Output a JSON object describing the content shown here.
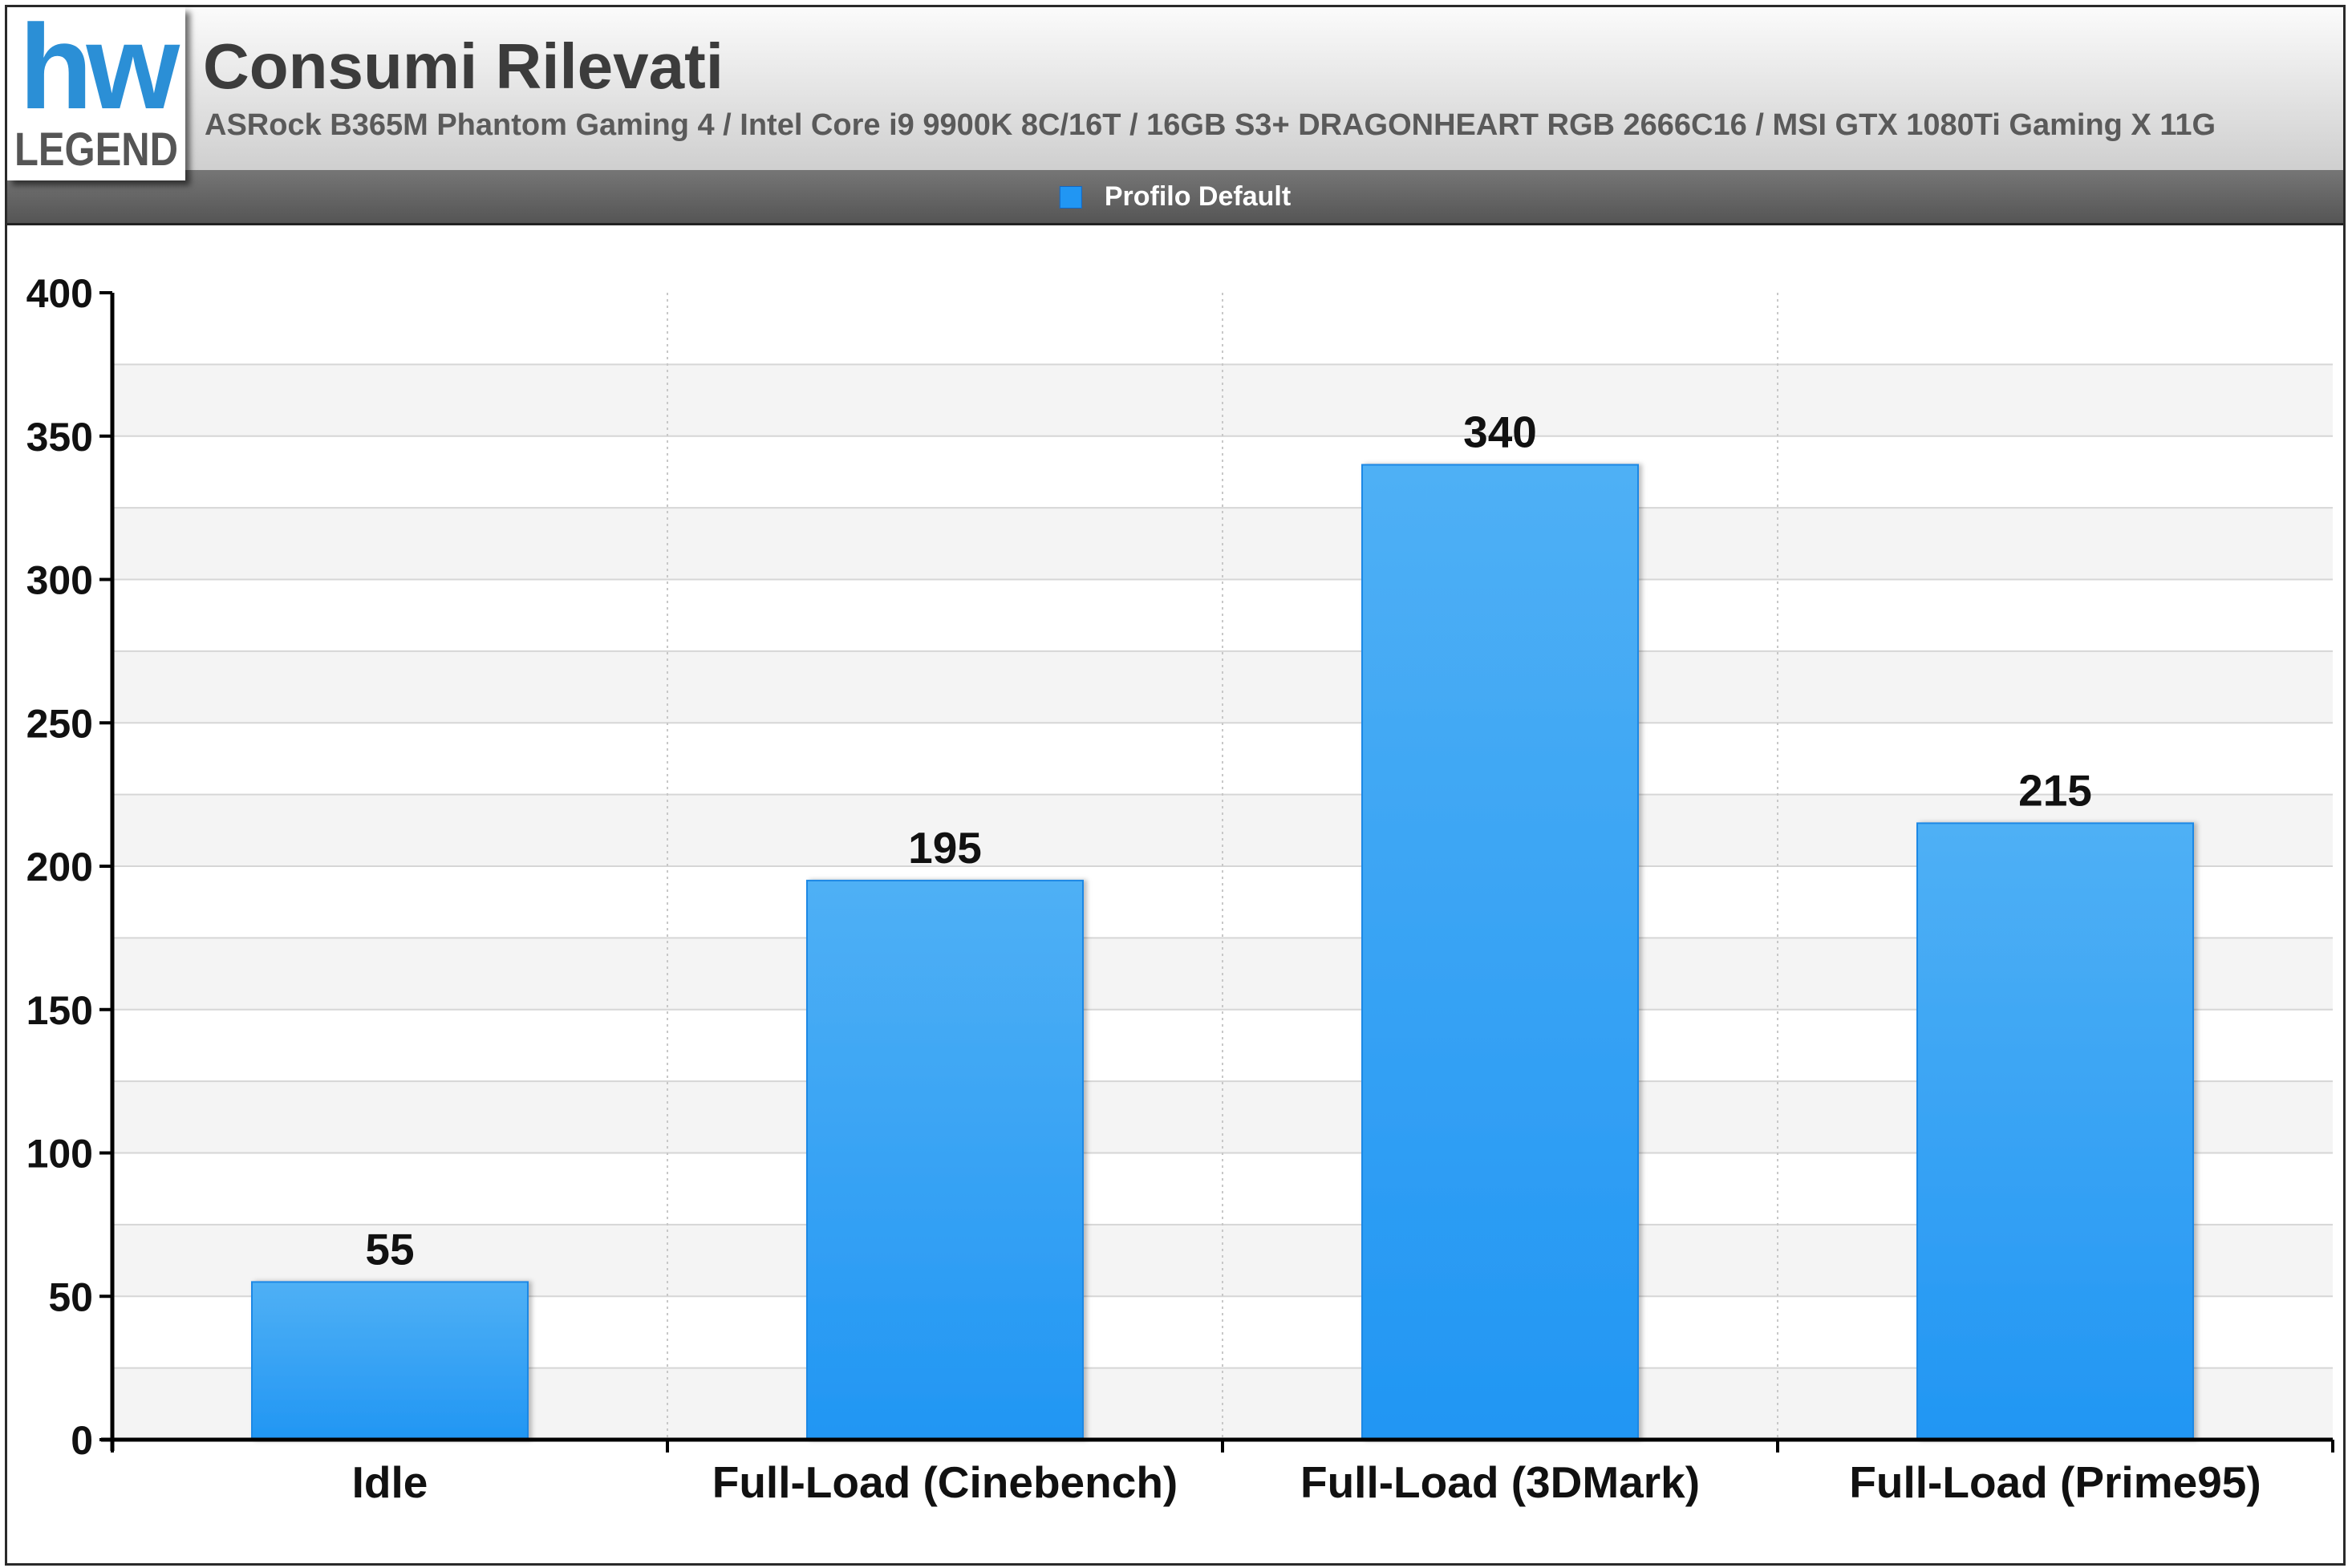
{
  "header": {
    "logo_top": "hw",
    "logo_bottom": "LEGEND",
    "title": "Consumi Rilevati",
    "subtitle": "ASRock B365M Phantom Gaming 4 / Intel Core i9 9900K 8C/16T / 16GB S3+ DRAGONHEART RGB 2666C16 / MSI GTX 1080Ti Gaming X 11G"
  },
  "colors": {
    "bar": "#2196f3",
    "bar_light": "#4fb0f5",
    "bar_border": "#1e88e5",
    "band": "#f4f4f4",
    "grid": "#d6d6d6",
    "logo_blue": "#2b8fd6",
    "logo_gray": "#555555"
  },
  "chart_data": {
    "type": "bar",
    "title": "Consumi Rilevati",
    "subtitle": "ASRock B365M Phantom Gaming 4 / Intel Core i9 9900K 8C/16T / 16GB S3+ DRAGONHEART RGB 2666C16 / MSI GTX 1080Ti Gaming X 11G",
    "categories": [
      "Idle",
      "Full-Load (Cinebench)",
      "Full-Load (3DMark)",
      "Full-Load (Prime95)"
    ],
    "series": [
      {
        "name": "Profilo Default",
        "values": [
          55,
          195,
          340,
          215
        ]
      }
    ],
    "ylim": [
      0,
      400
    ],
    "yticks": [
      0,
      50,
      100,
      150,
      200,
      250,
      300,
      350,
      400
    ],
    "xlabel": "",
    "ylabel": "",
    "grid": true,
    "legend_position": "top-center",
    "data_labels": true
  }
}
